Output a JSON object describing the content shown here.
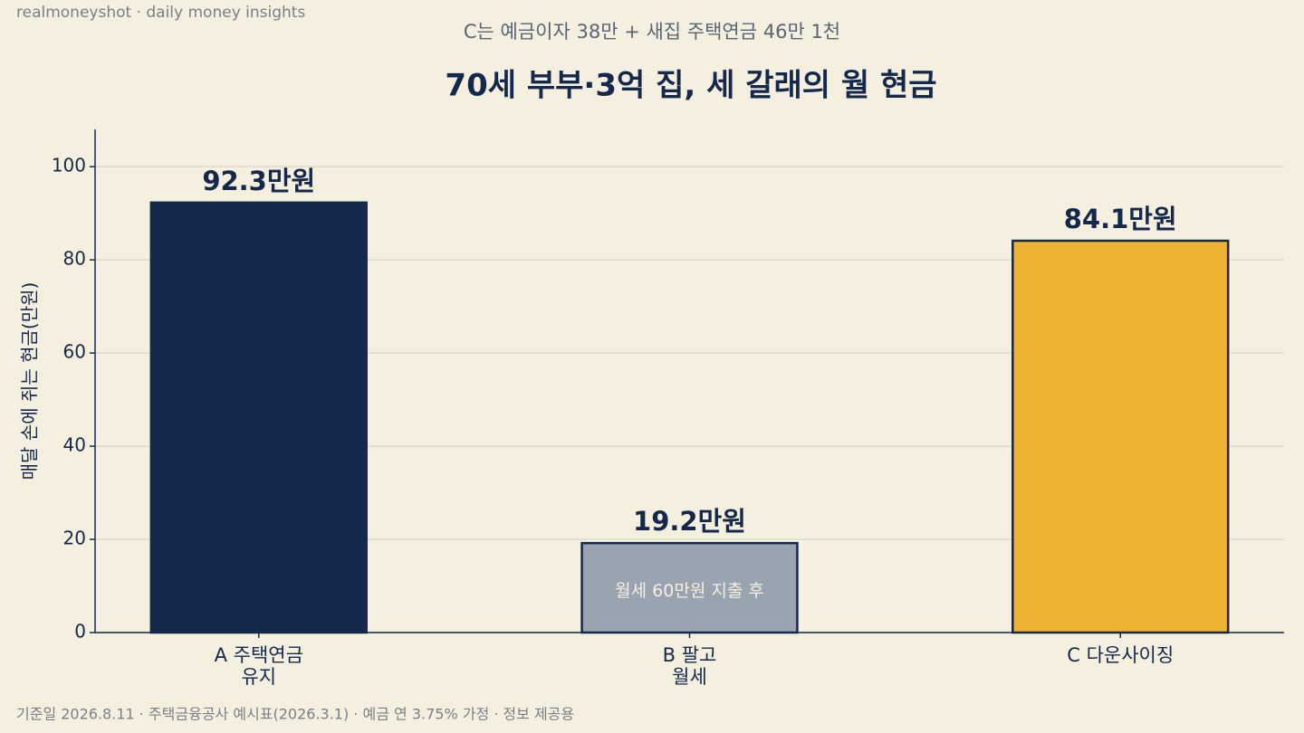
{
  "brand": "realmoneyshot · daily money insights",
  "footer": "기준일 2026.8.11 · 주택금융공사 예시표(2026.3.1) · 예금 연 3.75% 가정 · 정보 제공용",
  "chart_data": {
    "type": "bar",
    "subtitle": "C는 예금이자 38만 + 새집 주택연금 46만 1천",
    "title": "70세 부부·3억 집, 세 갈래의 월 현금",
    "y_label": "매달 손에 쥐는 현금(만원)",
    "categories": [
      "A 주택연금\n유지",
      "B 팔고\n월세",
      "C 다운사이징"
    ],
    "values": [
      92.3,
      19.2,
      84.1
    ],
    "value_labels": [
      "92.3만원",
      "19.2만원",
      "84.1만원"
    ],
    "colors": [
      "#14284b",
      "#9aa4b1",
      "#edb230"
    ],
    "annotation": "월세 60만원 지출 후",
    "ylim": [
      0,
      108
    ],
    "yticks": [
      0,
      20,
      40,
      60,
      80,
      100
    ],
    "grid": true
  }
}
